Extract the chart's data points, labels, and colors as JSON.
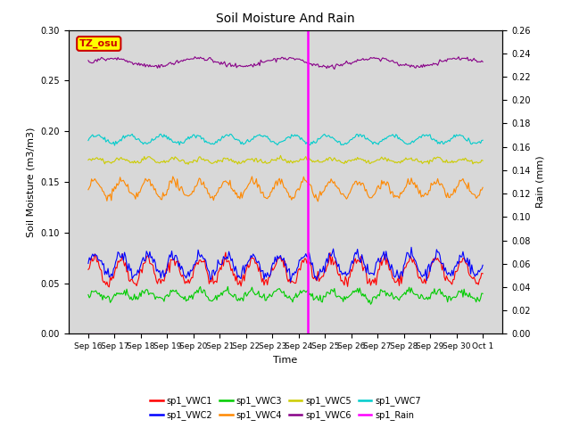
{
  "title": "Soil Moisture And Rain",
  "xlabel": "Time",
  "ylabel_left": "Soil Moisture (m3/m3)",
  "ylabel_right": "Rain (mm)",
  "ylim_left": [
    0.0,
    0.3
  ],
  "ylim_right": [
    0.0,
    0.26
  ],
  "yticks_left": [
    0.0,
    0.05,
    0.1,
    0.15,
    0.2,
    0.25,
    0.3
  ],
  "yticks_right": [
    0.0,
    0.02,
    0.04,
    0.06,
    0.08,
    0.1,
    0.12,
    0.14,
    0.16,
    0.18,
    0.2,
    0.22,
    0.24,
    0.26
  ],
  "xtick_labels": [
    "Sep 16",
    "Sep 17",
    "Sep 18",
    "Sep 19",
    "Sep 20",
    "Sep 21",
    "Sep 22",
    "Sep 23",
    "Sep 24",
    "Sep 25",
    "Sep 26",
    "Sep 27",
    "Sep 28",
    "Sep 29",
    "Sep 30",
    "Oct 1"
  ],
  "vline_color": "#ff00ff",
  "annotation_text": "TZ_osu",
  "annotation_color": "#cc0000",
  "annotation_bg": "#ffff00",
  "background_color": "#d8d8d8",
  "series": {
    "sp1_VWC1": {
      "color": "#ff0000",
      "mean": 0.062,
      "amp": 0.012,
      "freq": 1.0,
      "noise": 0.003
    },
    "sp1_VWC2": {
      "color": "#0000ff",
      "mean": 0.068,
      "amp": 0.01,
      "freq": 1.0,
      "noise": 0.003
    },
    "sp1_VWC3": {
      "color": "#00cc00",
      "mean": 0.038,
      "amp": 0.004,
      "freq": 1.0,
      "noise": 0.002
    },
    "sp1_VWC4": {
      "color": "#ff8800",
      "mean": 0.143,
      "amp": 0.008,
      "freq": 1.0,
      "noise": 0.002
    },
    "sp1_VWC5": {
      "color": "#cccc00",
      "mean": 0.171,
      "amp": 0.002,
      "freq": 1.0,
      "noise": 0.001
    },
    "sp1_VWC6": {
      "color": "#880088",
      "mean": 0.268,
      "amp": 0.004,
      "freq": 0.3,
      "noise": 0.001
    },
    "sp1_VWC7": {
      "color": "#00cccc",
      "mean": 0.192,
      "amp": 0.004,
      "freq": 0.8,
      "noise": 0.001
    },
    "sp1_Rain": {
      "color": "#ff00ff",
      "mean": 0.0,
      "amp": 0.0,
      "freq": 0.0,
      "noise": 0.0
    }
  },
  "legend": [
    {
      "label": "sp1_VWC1",
      "color": "#ff0000"
    },
    {
      "label": "sp1_VWC2",
      "color": "#0000ff"
    },
    {
      "label": "sp1_VWC3",
      "color": "#00cc00"
    },
    {
      "label": "sp1_VWC4",
      "color": "#ff8800"
    },
    {
      "label": "sp1_VWC5",
      "color": "#cccc00"
    },
    {
      "label": "sp1_VWC6",
      "color": "#880088"
    },
    {
      "label": "sp1_VWC7",
      "color": "#00cccc"
    },
    {
      "label": "sp1_Rain",
      "color": "#ff00ff"
    }
  ],
  "n_points": 360,
  "n_days": 15,
  "vline_day": 8.35
}
